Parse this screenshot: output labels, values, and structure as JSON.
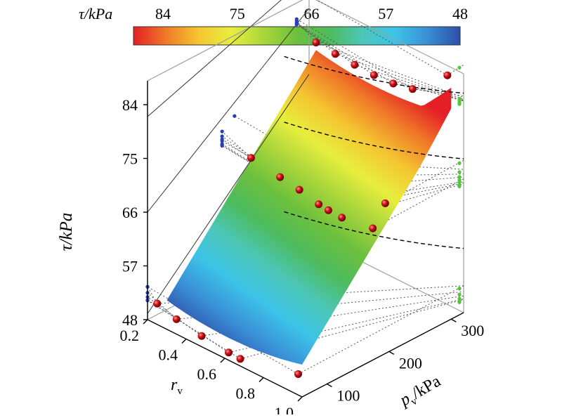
{
  "chart_data": {
    "type": "surface3d",
    "colorbar": {
      "title": "τ/kPa",
      "ticks": [
        "84",
        "75",
        "66",
        "57",
        "48"
      ],
      "range": [
        84,
        48
      ],
      "colors": [
        "#e41f26",
        "#f07a28",
        "#f4c531",
        "#e8ee3d",
        "#a9d53b",
        "#6cc03d",
        "#4dbb5d",
        "#4cc7b8",
        "#3cc3e8",
        "#3a8fd6",
        "#2d4fa8"
      ]
    },
    "z_axis": {
      "label": "τ/kPa",
      "ticks": [
        "48",
        "57",
        "66",
        "75",
        "84"
      ],
      "range": [
        48,
        88
      ]
    },
    "x_axis": {
      "label": "r",
      "label_subscript": "v",
      "ticks": [
        "0.2",
        "0.4",
        "0.6",
        "0.8",
        "1.0"
      ],
      "range": [
        0.2,
        1.0
      ]
    },
    "y_axis": {
      "label": "p",
      "label_subscript": "v",
      "label_unit": "/kPa",
      "ticks": [
        "100",
        "200",
        "300"
      ],
      "range": [
        60,
        320
      ]
    },
    "surface_range": {
      "r": [
        0.3,
        1.0
      ],
      "p": [
        60,
        300
      ],
      "tau": [
        51,
        88
      ]
    },
    "series": [
      {
        "kind": "measured",
        "points": [
          [
            0.25,
            60,
            51.5
          ],
          [
            0.35,
            60,
            50.5
          ],
          [
            0.48,
            60,
            49.8
          ],
          [
            0.62,
            60,
            49.3
          ],
          [
            0.68,
            60,
            49.2
          ],
          [
            0.98,
            60,
            51.5
          ],
          [
            0.98,
            200,
            72.5
          ],
          [
            0.98,
            300,
            88.5
          ],
          [
            0.3,
            300,
            83.0
          ],
          [
            0.4,
            300,
            82.7
          ],
          [
            0.5,
            300,
            82.5
          ],
          [
            0.6,
            300,
            82.4
          ],
          [
            0.7,
            300,
            82.6
          ],
          [
            0.8,
            300,
            83.3
          ],
          [
            0.35,
            180,
            71.0
          ],
          [
            0.5,
            180,
            70.2
          ],
          [
            0.6,
            180,
            69.7
          ],
          [
            0.7,
            180,
            68.9
          ],
          [
            0.75,
            180,
            68.7
          ],
          [
            0.82,
            180,
            68.6
          ],
          [
            0.98,
            180,
            69.4
          ]
        ]
      }
    ]
  }
}
